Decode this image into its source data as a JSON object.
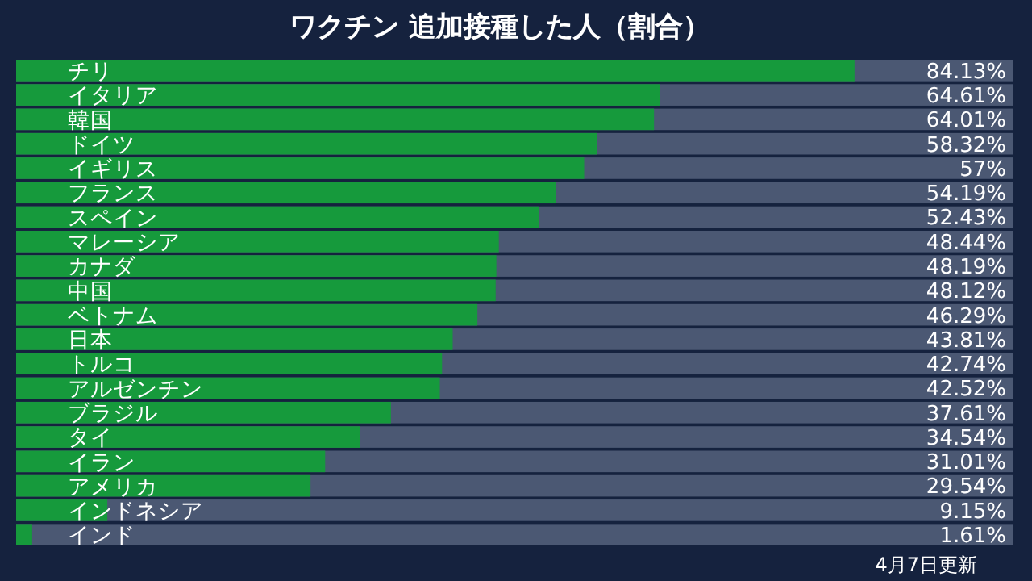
{
  "chart_data": {
    "type": "bar",
    "orientation": "horizontal",
    "title": "ワクチン 追加接種した人（割合）",
    "categories": [
      "チリ",
      "イタリア",
      "韓国",
      "ドイツ",
      "イギリス",
      "フランス",
      "スペイン",
      "マレーシア",
      "カナダ",
      "中国",
      "ベトナム",
      "日本",
      "トルコ",
      "アルゼンチン",
      "ブラジル",
      "タイ",
      "イラン",
      "アメリカ",
      "インドネシア",
      "インド"
    ],
    "values": [
      84.13,
      64.61,
      64.01,
      58.32,
      57,
      54.19,
      52.43,
      48.44,
      48.19,
      48.12,
      46.29,
      43.81,
      42.74,
      42.52,
      37.61,
      34.54,
      31.01,
      29.54,
      9.15,
      1.61
    ],
    "value_labels": [
      "84.13%",
      "64.61%",
      "64.01%",
      "58.32%",
      "57%",
      "54.19%",
      "52.43%",
      "48.44%",
      "48.19%",
      "48.12%",
      "46.29%",
      "43.81%",
      "42.74%",
      "42.52%",
      "37.61%",
      "34.54%",
      "31.01%",
      "29.54%",
      "9.15%",
      "1.61%"
    ],
    "color": "#169a3c",
    "xlim": [
      0,
      100
    ],
    "annotations": [
      "4月7日更新"
    ]
  }
}
